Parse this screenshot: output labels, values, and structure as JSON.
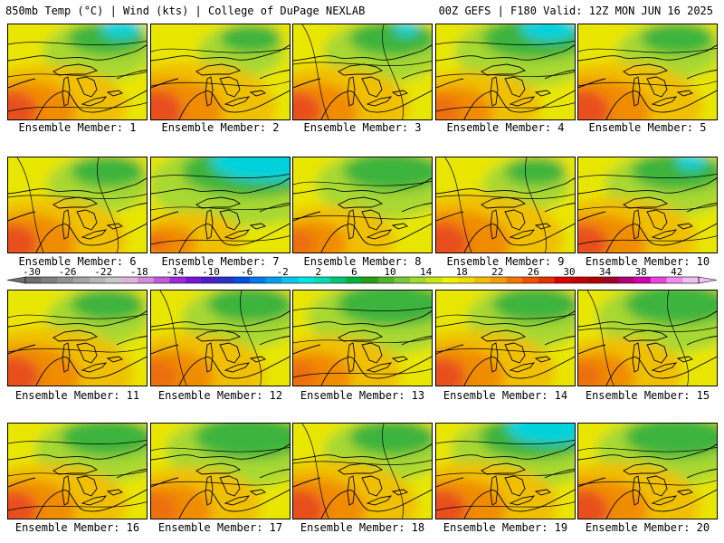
{
  "header": {
    "title": "850mb Temp (°C) | Wind (kts) | College of DuPage NEXLAB",
    "run_info": "00Z GEFS | F180 Valid: 12Z MON JUN 16 2025"
  },
  "members": [
    {
      "label": "Ensemble Member: 1",
      "warm": 0.7,
      "cool": 0.35,
      "cold": 0.3
    },
    {
      "label": "Ensemble Member: 2",
      "warm": 0.8,
      "cool": 0.2,
      "cold": 0.1
    },
    {
      "label": "Ensemble Member: 3",
      "warm": 0.65,
      "cool": 0.4,
      "cold": 0.15
    },
    {
      "label": "Ensemble Member: 4",
      "warm": 0.45,
      "cool": 0.55,
      "cold": 0.45
    },
    {
      "label": "Ensemble Member: 5",
      "warm": 0.8,
      "cool": 0.3,
      "cold": 0.05
    },
    {
      "label": "Ensemble Member: 6",
      "warm": 0.7,
      "cool": 0.3,
      "cold": 0.05
    },
    {
      "label": "Ensemble Member: 7",
      "warm": 0.2,
      "cool": 0.8,
      "cold": 0.9
    },
    {
      "label": "Ensemble Member: 8",
      "warm": 0.4,
      "cool": 0.5,
      "cold": 0.1
    },
    {
      "label": "Ensemble Member: 9",
      "warm": 0.85,
      "cool": 0.2,
      "cold": 0.05
    },
    {
      "label": "Ensemble Member: 10",
      "warm": 0.7,
      "cool": 0.45,
      "cold": 0.2
    },
    {
      "label": "Ensemble Member: 11",
      "warm": 0.8,
      "cool": 0.3,
      "cold": 0.05
    },
    {
      "label": "Ensemble Member: 12",
      "warm": 0.6,
      "cool": 0.4,
      "cold": 0.05
    },
    {
      "label": "Ensemble Member: 13",
      "warm": 0.5,
      "cool": 0.6,
      "cold": 0.05
    },
    {
      "label": "Ensemble Member: 14",
      "warm": 0.7,
      "cool": 0.4,
      "cold": 0.05
    },
    {
      "label": "Ensemble Member: 15",
      "warm": 0.45,
      "cool": 0.55,
      "cold": 0.05
    },
    {
      "label": "Ensemble Member: 16",
      "warm": 0.7,
      "cool": 0.45,
      "cold": 0.05
    },
    {
      "label": "Ensemble Member: 17",
      "warm": 0.55,
      "cool": 0.6,
      "cold": 0.05
    },
    {
      "label": "Ensemble Member: 18",
      "warm": 0.8,
      "cool": 0.4,
      "cold": 0.05
    },
    {
      "label": "Ensemble Member: 19",
      "warm": 0.75,
      "cool": 0.6,
      "cold": 0.7
    },
    {
      "label": "Ensemble Member: 20",
      "warm": 0.75,
      "cool": 0.55,
      "cold": 0.1
    }
  ],
  "colorbar": {
    "ticks": [
      "-30",
      "-26",
      "-22",
      "-18",
      "-14",
      "-10",
      "-6",
      "-2",
      "2",
      "6",
      "10",
      "14",
      "18",
      "22",
      "26",
      "30",
      "34",
      "38",
      "42"
    ],
    "colors": [
      "#6e6e6e",
      "#808080",
      "#929292",
      "#a4a4a4",
      "#b6b6b6",
      "#c8c8c8",
      "#dcb4dc",
      "#d28cdc",
      "#be5adc",
      "#a028dc",
      "#7814dc",
      "#501ec8",
      "#2832c8",
      "#0050e6",
      "#0078f0",
      "#00a0f0",
      "#00c8f0",
      "#00e6e6",
      "#00dcb4",
      "#00c878",
      "#00b43c",
      "#28a014",
      "#50b428",
      "#78c83c",
      "#a0dc28",
      "#c8e614",
      "#f0f000",
      "#f0dc00",
      "#f0be00",
      "#f0a000",
      "#f07800",
      "#f05000",
      "#e63200",
      "#dc0000",
      "#c80000",
      "#b40000",
      "#a00028",
      "#b40078",
      "#d200b4",
      "#e646dc",
      "#f08cf0",
      "#f0bef0"
    ]
  }
}
